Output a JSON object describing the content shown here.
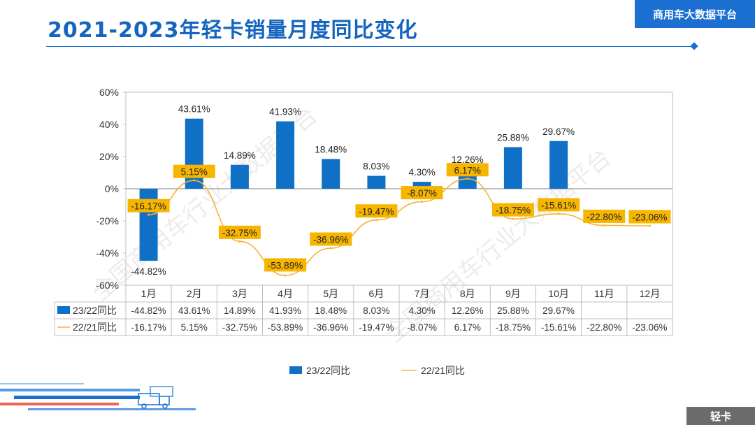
{
  "header": {
    "title": "2021-2023年轻卡销量月度同比变化",
    "brand": "商用车大数据平台"
  },
  "footer": {
    "category_tab": "轻卡"
  },
  "watermarks": [
    "全国商用车行业大数据平台",
    "全国商用车行业大数据平台"
  ],
  "colors": {
    "bar": "#1070c6",
    "line": "#f5b335",
    "label_bg": "#f7b500",
    "accent": "#1a6fd1"
  },
  "chart_data": {
    "type": "bar",
    "categories": [
      "1月",
      "2月",
      "3月",
      "4月",
      "5月",
      "6月",
      "7月",
      "8月",
      "9月",
      "10月",
      "11月",
      "12月"
    ],
    "series": [
      {
        "name": "23/22同比",
        "type": "bar",
        "values": [
          -44.82,
          43.61,
          14.89,
          41.93,
          18.48,
          8.03,
          4.3,
          12.26,
          25.88,
          29.67,
          null,
          null
        ],
        "labels": [
          "-44.82%",
          "43.61%",
          "14.89%",
          "41.93%",
          "18.48%",
          "8.03%",
          "4.30%",
          "12.26%",
          "25.88%",
          "29.67%",
          "",
          ""
        ]
      },
      {
        "name": "22/21同比",
        "type": "line",
        "values": [
          -16.17,
          5.15,
          -32.75,
          -53.89,
          -36.96,
          -19.47,
          -8.07,
          6.17,
          -18.75,
          -15.61,
          -22.8,
          -23.06
        ],
        "labels": [
          "-16.17%",
          "5.15%",
          "-32.75%",
          "-53.89%",
          "-36.96%",
          "-19.47%",
          "-8.07%",
          "6.17%",
          "-18.75%",
          "-15.61%",
          "-22.80%",
          "-23.06%"
        ]
      }
    ],
    "ylim": [
      -60,
      60
    ],
    "yticks": [
      "-60%",
      "-40%",
      "-20%",
      "0%",
      "20%",
      "40%",
      "60%"
    ],
    "ytick_values": [
      -60,
      -40,
      -20,
      0,
      20,
      40,
      60
    ],
    "legend": {
      "placement": "bottom"
    }
  }
}
